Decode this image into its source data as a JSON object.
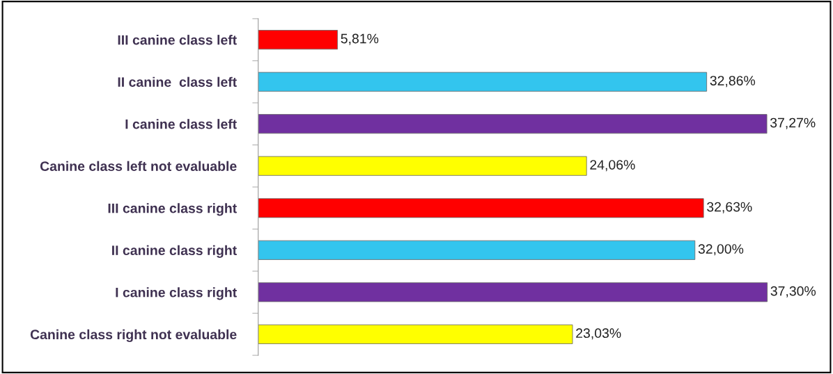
{
  "chart_data": {
    "type": "bar",
    "orientation": "horizontal",
    "categories": [
      "III canine class left",
      "II canine  class left",
      "I canine class left",
      "Canine class left not evaluable",
      "III canine class right",
      "II canine class right",
      "I canine class right",
      "Canine class right not evaluable"
    ],
    "values": [
      5.81,
      32.86,
      37.27,
      24.06,
      32.63,
      32.0,
      37.3,
      23.03
    ],
    "colors": [
      "#ff0000",
      "#33c5ee",
      "#7030a0",
      "#ffff00",
      "#ff0000",
      "#33c5ee",
      "#7030a0",
      "#ffff00"
    ],
    "value_labels": [
      "5,81%",
      "32,86%",
      "37,27%",
      "24,06%",
      "32,63%",
      "32,00%",
      "37,30%",
      "23,03%"
    ],
    "grid": false,
    "legend": false
  }
}
